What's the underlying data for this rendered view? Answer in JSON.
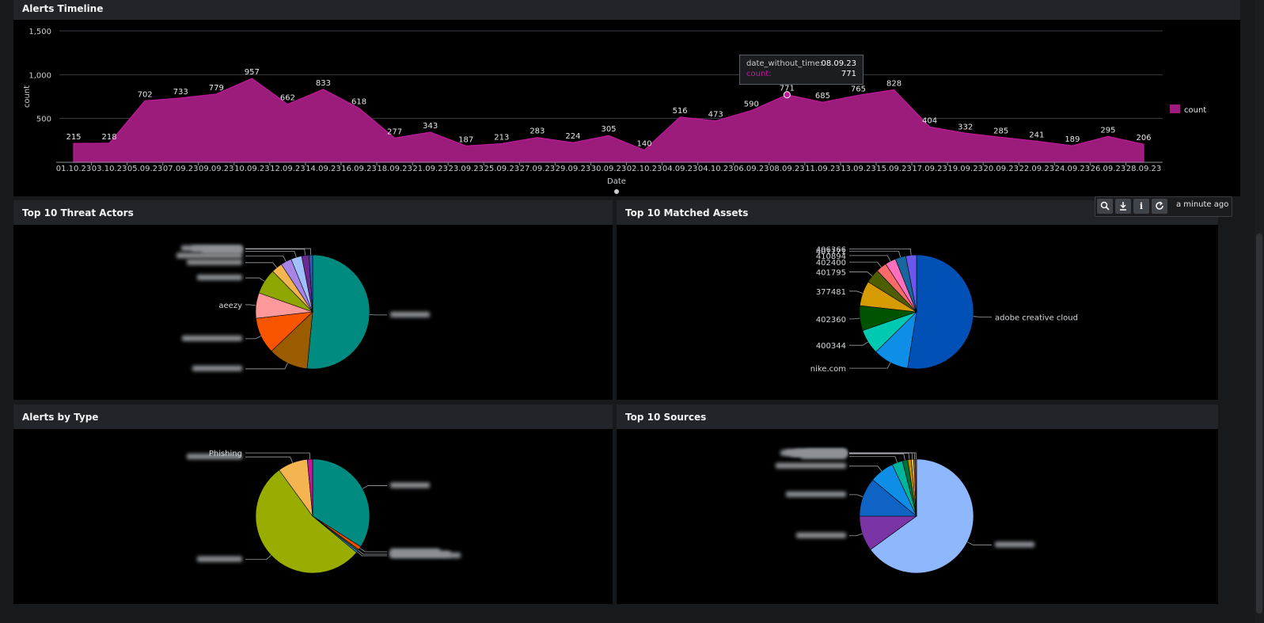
{
  "panels": {
    "timeline": {
      "title": "Alerts Timeline"
    },
    "threat_actors": {
      "title": "Top 10 Threat Actors"
    },
    "matched_assets": {
      "title": "Top 10 Matched Assets"
    },
    "alerts_by_type": {
      "title": "Alerts by Type"
    },
    "top_sources": {
      "title": "Top 10 Sources"
    }
  },
  "toolbar": {
    "search_icon": "search-icon",
    "export_icon": "download-icon",
    "info_icon": "info-icon",
    "refresh_icon": "refresh-icon",
    "last_updated": "a minute ago"
  },
  "tooltip": {
    "key1": "date_without_time:",
    "val1": "08.09.23",
    "key2": "count:",
    "val2": "771"
  },
  "colors": {
    "series": "#9c1c7c",
    "panel_bg": "#000000",
    "header_bg": "#212529"
  },
  "chart_data": [
    {
      "type": "area",
      "title": "Alerts Timeline",
      "xlabel": "Date",
      "ylabel": "count",
      "ylim": [
        0,
        1500
      ],
      "yticks": [
        "500",
        "1,000",
        "1,500"
      ],
      "grid": true,
      "legend": "right",
      "series": [
        {
          "name": "count",
          "color": "#9c1c7c",
          "values": [
            215,
            218,
            702,
            733,
            779,
            957,
            662,
            833,
            618,
            277,
            343,
            187,
            213,
            283,
            224,
            305,
            140,
            516,
            473,
            590,
            771,
            685,
            765,
            828,
            404,
            332,
            285,
            241,
            189,
            295,
            206
          ]
        }
      ],
      "categories": [
        "01.10.23",
        "03.10.23",
        "05.09.23",
        "07.09.23",
        "09.09.23",
        "10.09.23",
        "12.09.23",
        "14.09.23",
        "16.09.23",
        "18.09.23",
        "21.09.23",
        "23.09.23",
        "25.09.23",
        "27.09.23",
        "29.09.23",
        "30.09.23",
        "02.10.23",
        "04.09.23",
        "04.10.23",
        "06.09.23",
        "08.09.23",
        "11.09.23",
        "13.09.23",
        "15.09.23",
        "17.09.23",
        "19.09.23",
        "20.09.23",
        "22.09.23",
        "24.09.23",
        "26.09.23",
        "28.09.23"
      ],
      "highlight_index": 20
    },
    {
      "type": "pie",
      "title": "Top 10 Threat Actors",
      "slices": [
        {
          "label": "",
          "value": 50,
          "color": "#008b80"
        },
        {
          "label": "",
          "value": 11,
          "color": "#9b5c00"
        },
        {
          "label": "",
          "value": 10,
          "color": "#f95400"
        },
        {
          "label": "aeezy",
          "value": 7,
          "color": "#fd999a"
        },
        {
          "label": "",
          "value": 7,
          "color": "#8fa600"
        },
        {
          "label": "",
          "value": 3,
          "color": "#f4b551"
        },
        {
          "label": "",
          "value": 3,
          "color": "#a784e8"
        },
        {
          "label": "",
          "value": 3,
          "color": "#a1bffa"
        },
        {
          "label": "",
          "value": 2,
          "color": "#6b2b91"
        },
        {
          "label": "",
          "value": 1,
          "color": "#2d5cb5"
        }
      ]
    },
    {
      "type": "pie",
      "title": "Top 10 Matched Assets",
      "slices": [
        {
          "label": "adobe creative cloud",
          "value": 52,
          "color": "#0050b5"
        },
        {
          "label": "nike.com",
          "value": 10,
          "color": "#0f8ee8"
        },
        {
          "label": "400344",
          "value": 7,
          "color": "#00c9b1"
        },
        {
          "label": "402360",
          "value": 7,
          "color": "#005300"
        },
        {
          "label": "377481",
          "value": 7,
          "color": "#d69b00"
        },
        {
          "label": "401795",
          "value": 4,
          "color": "#4c5e00"
        },
        {
          "label": "402400",
          "value": 3,
          "color": "#fc6a6a"
        },
        {
          "label": "410894",
          "value": 3,
          "color": "#fe70bd"
        },
        {
          "label": "401171",
          "value": 3,
          "color": "#17679e"
        },
        {
          "label": "406366",
          "value": 3,
          "color": "#6c57ec"
        }
      ]
    },
    {
      "type": "pie",
      "title": "Alerts by Type",
      "slices": [
        {
          "label": "",
          "value": 34,
          "color": "#008b80"
        },
        {
          "label": "",
          "value": 1,
          "color": "#f04d00"
        },
        {
          "label": "",
          "value": 0.5,
          "color": "#4c5e00"
        },
        {
          "label": "",
          "value": 0.5,
          "color": "#0f8ee8"
        },
        {
          "label": "",
          "value": 54,
          "color": "#99ad00"
        },
        {
          "label": "",
          "value": 8.5,
          "color": "#f4b551"
        },
        {
          "label": "Phishing",
          "value": 1.5,
          "color": "#c0199b"
        }
      ]
    },
    {
      "type": "pie",
      "title": "Top 10 Sources",
      "slices": [
        {
          "label": "",
          "value": 65,
          "color": "#8fb8fc"
        },
        {
          "label": "",
          "value": 10,
          "color": "#7a34a6"
        },
        {
          "label": "",
          "value": 11,
          "color": "#0f63c4"
        },
        {
          "label": "",
          "value": 7,
          "color": "#0f8ee8"
        },
        {
          "label": "",
          "value": 3,
          "color": "#00b39a"
        },
        {
          "label": "",
          "value": 1.5,
          "color": "#00703a"
        },
        {
          "label": "",
          "value": 1,
          "color": "#c98a00"
        },
        {
          "label": "",
          "value": 0.7,
          "color": "#d7c24a"
        },
        {
          "label": "",
          "value": 0.5,
          "color": "#c14b4b"
        },
        {
          "label": "",
          "value": 0.3,
          "color": "#6c57ec"
        }
      ]
    }
  ]
}
